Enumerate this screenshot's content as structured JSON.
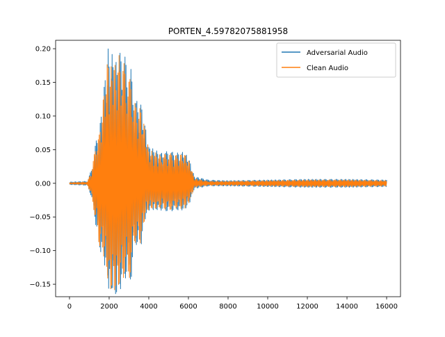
{
  "chart_data": {
    "type": "line",
    "title": "PORTEN_4.59782075881958",
    "xlabel": "",
    "ylabel": "",
    "xlim": [
      -700,
      16700
    ],
    "ylim": [
      -0.1685,
      0.2125
    ],
    "x_ticks": [
      0,
      2000,
      4000,
      6000,
      8000,
      10000,
      12000,
      14000,
      16000
    ],
    "x_tick_labels": [
      "0",
      "2000",
      "4000",
      "6000",
      "8000",
      "10000",
      "12000",
      "14000",
      "16000"
    ],
    "y_ticks": [
      -0.15,
      -0.1,
      -0.05,
      0.0,
      0.05,
      0.1,
      0.15,
      0.2
    ],
    "y_tick_labels": [
      "−0.15",
      "−0.10",
      "−0.05",
      "0.00",
      "0.05",
      "0.10",
      "0.15",
      "0.20"
    ],
    "grid": false,
    "legend_position": "top-right",
    "series": [
      {
        "name": "Adversarial Audio",
        "color": "#1f77b4",
        "envelope": {
          "x": [
            0,
            900,
            1100,
            1250,
            1400,
            1500,
            1650,
            1800,
            1950,
            2050,
            2200,
            2350,
            2500,
            2650,
            2800,
            2950,
            3100,
            3250,
            3450,
            3600,
            3800,
            4000,
            4300,
            4600,
            5000,
            5400,
            5800,
            6050,
            6300,
            7000,
            8000,
            10000,
            12000,
            14000,
            16000
          ],
          "upper": [
            0.002,
            0.003,
            0.02,
            0.047,
            0.074,
            0.075,
            0.12,
            0.16,
            0.202,
            0.175,
            0.2,
            0.18,
            0.2,
            0.185,
            0.19,
            0.16,
            0.17,
            0.13,
            0.12,
            0.12,
            0.09,
            0.055,
            0.05,
            0.045,
            0.048,
            0.045,
            0.047,
            0.035,
            0.01,
            0.005,
            0.004,
            0.005,
            0.006,
            0.006,
            0.005
          ],
          "lower": [
            -0.002,
            -0.003,
            -0.02,
            -0.048,
            -0.075,
            -0.1,
            -0.105,
            -0.125,
            -0.155,
            -0.165,
            -0.16,
            -0.17,
            -0.16,
            -0.155,
            -0.14,
            -0.145,
            -0.148,
            -0.095,
            -0.09,
            -0.095,
            -0.055,
            -0.04,
            -0.04,
            -0.04,
            -0.042,
            -0.04,
            -0.04,
            -0.03,
            -0.008,
            -0.004,
            -0.004,
            -0.005,
            -0.006,
            -0.006,
            -0.005
          ]
        }
      },
      {
        "name": "Clean Audio",
        "color": "#ff7f0e",
        "envelope": {
          "x": [
            0,
            900,
            1100,
            1250,
            1400,
            1500,
            1650,
            1800,
            1950,
            2050,
            2200,
            2350,
            2500,
            2650,
            2800,
            2950,
            3100,
            3250,
            3450,
            3600,
            3800,
            4000,
            4300,
            4600,
            5000,
            5400,
            5800,
            6050,
            6300,
            7000,
            8000,
            10000,
            12000,
            14000,
            16000
          ],
          "upper": [
            0.001,
            0.002,
            0.018,
            0.043,
            0.07,
            0.072,
            0.112,
            0.152,
            0.19,
            0.165,
            0.19,
            0.17,
            0.19,
            0.175,
            0.18,
            0.15,
            0.16,
            0.122,
            0.112,
            0.112,
            0.084,
            0.05,
            0.046,
            0.042,
            0.045,
            0.042,
            0.044,
            0.032,
            0.007,
            0.003,
            0.003,
            0.004,
            0.005,
            0.005,
            0.004
          ],
          "lower": [
            -0.001,
            -0.002,
            -0.018,
            -0.044,
            -0.07,
            -0.095,
            -0.1,
            -0.118,
            -0.148,
            -0.163,
            -0.155,
            -0.165,
            -0.152,
            -0.15,
            -0.133,
            -0.14,
            -0.14,
            -0.09,
            -0.086,
            -0.09,
            -0.052,
            -0.038,
            -0.038,
            -0.037,
            -0.04,
            -0.037,
            -0.038,
            -0.028,
            -0.006,
            -0.003,
            -0.003,
            -0.004,
            -0.005,
            -0.005,
            -0.004
          ]
        }
      }
    ]
  }
}
